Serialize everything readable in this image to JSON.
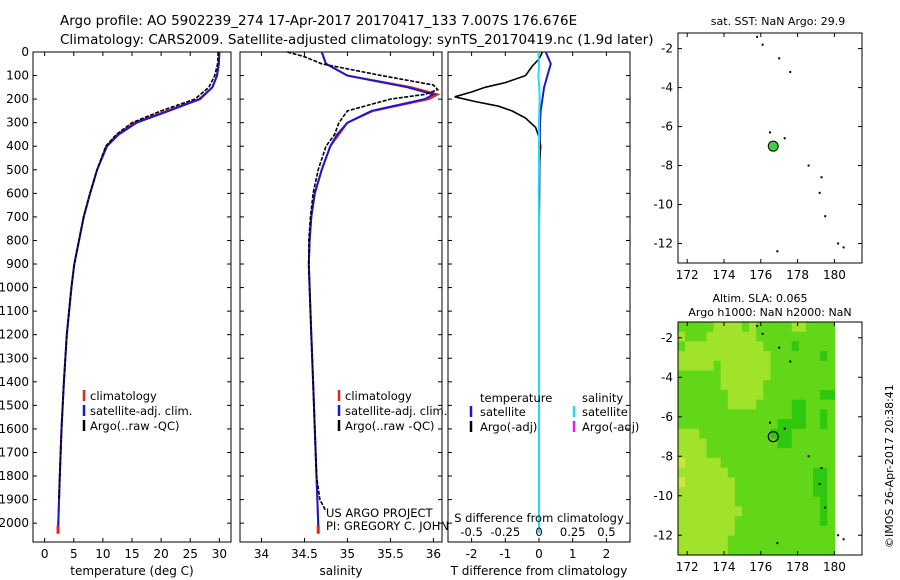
{
  "header": {
    "line1": "Argo profile: AO 5902239_274 17-Apr-2017 20170417_133 7.007S 176.676E",
    "line2": "Climatology: CARS2009. Satellite-adjusted climatology: synTS_20170419.nc (1.9d later)"
  },
  "side_stamp": "©IMOS 26-Apr-2017 20:38:41",
  "colors": {
    "climatology": "#e8201c",
    "satellite": "#1a1acc",
    "argo": "#000000",
    "satellite_salinity": "#22ddee",
    "argo_adj_salinity": "#dd22dd",
    "float_marker": "#44cc44"
  },
  "chart_data": [
    {
      "id": "temperature",
      "type": "line",
      "title": "",
      "xlabel": "temperature (deg C)",
      "ylabel": "",
      "xlim": [
        -2,
        32
      ],
      "ylim": [
        2080,
        0
      ],
      "xticks": [
        0,
        5,
        10,
        15,
        20,
        25,
        30
      ],
      "yticks": [
        0,
        100,
        200,
        300,
        400,
        500,
        600,
        700,
        800,
        900,
        1000,
        1100,
        1200,
        1300,
        1400,
        1500,
        1600,
        1700,
        1800,
        1900,
        2000
      ],
      "legend": [
        "climatology",
        "satellite-adj. clim.",
        "Argo(..raw -QC)"
      ],
      "series": [
        {
          "name": "climatology",
          "color_key": "climatology",
          "depth": [
            0,
            50,
            100,
            150,
            200,
            250,
            300,
            350,
            400,
            500,
            600,
            700,
            800,
            900,
            1000,
            1200,
            1400,
            1600,
            1800,
            2000,
            2040
          ],
          "values": [
            30,
            29.9,
            29.6,
            28.8,
            26.5,
            21,
            15.5,
            12.5,
            10.6,
            9,
            7.8,
            6.7,
            5.9,
            5.1,
            4.6,
            3.8,
            3.3,
            2.9,
            2.6,
            2.35,
            2.3
          ]
        },
        {
          "name": "satellite-adj. clim.",
          "color_key": "satellite",
          "depth": [
            0,
            50,
            100,
            150,
            200,
            250,
            300,
            350,
            400,
            500,
            600,
            700,
            800,
            900,
            1000,
            1200,
            1400,
            1600,
            1800,
            2000,
            2040
          ],
          "values": [
            30,
            29.9,
            29.6,
            28.8,
            26.7,
            21.3,
            15.8,
            12.7,
            10.7,
            9,
            7.8,
            6.7,
            5.9,
            5.1,
            4.6,
            3.8,
            3.3,
            2.9,
            2.6,
            2.35,
            2.3
          ]
        },
        {
          "name": "Argo(..raw -QC)",
          "color_key": "argo",
          "depth": [
            0,
            50,
            100,
            150,
            200,
            250,
            300,
            350,
            400,
            500,
            600,
            700,
            800,
            900,
            1000,
            1200,
            1400,
            1600,
            1800,
            1900
          ],
          "values": [
            29.8,
            29.7,
            29.2,
            28.2,
            25.8,
            20,
            15,
            12.3,
            10.5,
            9,
            7.8,
            6.7,
            5.9,
            5.1,
            4.6,
            3.8,
            3.3,
            2.9,
            2.6,
            2.45
          ]
        }
      ]
    },
    {
      "id": "salinity",
      "type": "line",
      "xlabel": "salinity",
      "xlim": [
        33.75,
        36.1
      ],
      "ylim": [
        2080,
        0
      ],
      "xticks": [
        34,
        34.5,
        35,
        35.5,
        36
      ],
      "legend": [
        "climatology",
        "satellite-adj. clim.",
        "Argo(..raw -QC)"
      ],
      "annotations": [
        "US ARGO PROJECT",
        "PI: GREGORY C. JOHNSON"
      ],
      "series": [
        {
          "name": "climatology",
          "color_key": "climatology",
          "depth": [
            0,
            50,
            100,
            150,
            180,
            200,
            250,
            300,
            350,
            400,
            500,
            600,
            700,
            800,
            900,
            1000,
            1200,
            1400,
            1600,
            1800,
            2000,
            2040
          ],
          "values": [
            34.7,
            34.75,
            35.0,
            35.75,
            36.05,
            35.95,
            35.3,
            35.0,
            34.9,
            34.8,
            34.7,
            34.62,
            34.58,
            34.56,
            34.55,
            34.56,
            34.58,
            34.6,
            34.62,
            34.64,
            34.66,
            34.66
          ]
        },
        {
          "name": "satellite-adj. clim.",
          "color_key": "satellite",
          "depth": [
            0,
            50,
            100,
            150,
            180,
            200,
            250,
            300,
            350,
            400,
            500,
            600,
            700,
            800,
            900,
            1000,
            1200,
            1400,
            1600,
            1800,
            2000,
            2040
          ],
          "values": [
            34.7,
            34.75,
            35.0,
            35.7,
            36.0,
            35.9,
            35.28,
            35.0,
            34.88,
            34.8,
            34.7,
            34.62,
            34.58,
            34.56,
            34.55,
            34.56,
            34.58,
            34.6,
            34.62,
            34.64,
            34.66,
            34.66
          ]
        },
        {
          "name": "Argo(..raw -QC)",
          "color_key": "argo",
          "depth": [
            0,
            20,
            50,
            100,
            140,
            160,
            180,
            200,
            250,
            300,
            350,
            400,
            500,
            600,
            700,
            800,
            900,
            1000,
            1200,
            1400,
            1600,
            1800,
            1900,
            1950
          ],
          "values": [
            34.3,
            34.5,
            34.7,
            35.4,
            36.0,
            36.05,
            35.9,
            35.5,
            35.0,
            34.9,
            34.85,
            34.75,
            34.66,
            34.6,
            34.57,
            34.55,
            34.55,
            34.56,
            34.58,
            34.6,
            34.62,
            34.64,
            34.68,
            34.75
          ]
        }
      ]
    },
    {
      "id": "difference",
      "type": "line",
      "xlabel": "T difference from climatology",
      "xlabel_top": "S difference from climatology",
      "xlim": [
        -2.7,
        2.7
      ],
      "ylim": [
        2080,
        0
      ],
      "xticks": [
        -2,
        -1,
        0,
        1,
        2
      ],
      "xticks_top": [
        -0.5,
        -0.25,
        0,
        0.25,
        0.5
      ],
      "xtick_labels_top": [
        "-0.5",
        "-0.25",
        "0",
        "0.25",
        "0.5"
      ],
      "legend": [
        "temperature",
        "satellite",
        "Argo(-adj)",
        "salinity",
        "satellite",
        "Argo(-adj)"
      ],
      "series": [
        {
          "name": "temperature satellite",
          "color_key": "satellite",
          "depth": [
            0,
            50,
            100,
            150,
            200,
            250,
            300,
            400,
            600,
            800,
            1000,
            1200,
            1500,
            1800,
            2040
          ],
          "values": [
            0.2,
            0.35,
            0.25,
            0.15,
            0.1,
            0.05,
            0.03,
            0.02,
            0.01,
            0.0,
            0.0,
            0.0,
            0.0,
            0.0,
            0.0
          ]
        },
        {
          "name": "temperature Argo(-adj)",
          "color_key": "argo",
          "depth": [
            0,
            30,
            60,
            100,
            130,
            150,
            170,
            190,
            210,
            230,
            250,
            280,
            320,
            360,
            400,
            500,
            600,
            800,
            1000,
            1200,
            1500,
            1800,
            1900
          ],
          "values": [
            0.1,
            0.0,
            -0.2,
            -0.4,
            -1.0,
            -1.6,
            -2.0,
            -2.5,
            -1.9,
            -1.2,
            -0.8,
            -0.4,
            -0.1,
            0.0,
            0.05,
            0.0,
            0.0,
            0.0,
            0.0,
            0.0,
            0.0,
            0.0,
            0.0
          ]
        },
        {
          "name": "salinity satellite",
          "color_key": "satellite_salinity",
          "depth": [
            0,
            30,
            60,
            100,
            150,
            200,
            250,
            300,
            400,
            500,
            600,
            700,
            800,
            1000,
            1200,
            1500,
            1800,
            2040
          ],
          "values": [
            -0.02,
            -0.01,
            0.0,
            -0.02,
            0.01,
            0.02,
            0.01,
            0.0,
            0.0,
            0.0,
            -0.01,
            0.0,
            0.0,
            0.0,
            0.0,
            0.0,
            0.0,
            0.0
          ]
        }
      ]
    },
    {
      "id": "sst-map",
      "type": "scatter",
      "title": "sat. SST: NaN Argo: 29.9",
      "xlim": [
        171.5,
        181.5
      ],
      "ylim": [
        -13,
        -1.2
      ],
      "xticks": [
        172,
        174,
        176,
        178,
        180
      ],
      "yticks": [
        -2,
        -4,
        -6,
        -8,
        -10,
        -12
      ],
      "float_position": {
        "lon": 176.676,
        "lat": -7.007
      },
      "islands": [
        {
          "lon": 175.8,
          "lat": -1.4
        },
        {
          "lon": 176.1,
          "lat": -1.8
        },
        {
          "lon": 177.0,
          "lat": -2.5
        },
        {
          "lon": 177.6,
          "lat": -3.2
        },
        {
          "lon": 176.5,
          "lat": -6.3
        },
        {
          "lon": 177.3,
          "lat": -6.6
        },
        {
          "lon": 178.6,
          "lat": -8.0
        },
        {
          "lon": 179.3,
          "lat": -8.6
        },
        {
          "lon": 179.2,
          "lat": -9.4
        },
        {
          "lon": 179.5,
          "lat": -10.6
        },
        {
          "lon": 180.2,
          "lat": -12.0
        },
        {
          "lon": 180.5,
          "lat": -12.2
        },
        {
          "lon": 176.9,
          "lat": -12.4
        }
      ]
    },
    {
      "id": "sla-map",
      "type": "heatmap",
      "title": "Altim. SLA: 0.065",
      "subtitle": "Argo h1000: NaN h2000: NaN",
      "xlim": [
        171.5,
        181.5
      ],
      "ylim": [
        -13,
        -1.2
      ],
      "xticks": [
        172,
        174,
        176,
        178,
        180
      ],
      "yticks": [
        -2,
        -4,
        -6,
        -8,
        -10,
        -12
      ],
      "data_extent_lon": [
        171.5,
        180.0
      ],
      "float_position": {
        "lon": 176.676,
        "lat": -7.007
      },
      "grid_rows": [
        "bbbbbccccbcbbbbbccbbbb",
        "cbbbcccccccbbbbbbbbbbb",
        "bcccccccccccbbbbabbbbb",
        "cccccccccccccbbbbbbbab",
        "cccccbcccccccbbbbbbbbb",
        "bbbbbbcccccccbbbbbbbbb",
        "bbbbbbccccccbbbbbbbbbb",
        "bbbbbbbcccccbbbbbbbbaa",
        "bbbbbbbccccbbbbbaabbbb",
        "bbbbbbbbbbbbbbbbaabbab",
        "bbbbbbbbbbbbbbaaaabbab",
        "cccbbbbbbbbbbaaabbbbbb",
        "ccccbbbbbbbbbbaabbbbbb",
        "ccccbbbbbbbbbbbbbbbbbb",
        "dcccccbbbbbbbbbbbbbbbb",
        "cccccccbbbbbbbbbbbbaab",
        "dcccccccbbbbbbbbbbbaab",
        "ccccccccbbbbbbbbbbbaab",
        "ccccccccbbbbbbbbbbbbab",
        "cccccccccbbbbbbbbbbbab",
        "ccccccccbbbbbbbbbbbbab",
        "ccccccccbbbbbbbbbbbbbb",
        "cccccccbbbbbbbbbbbbbbb",
        "cccccccbbbbbbbbbbbbbbb"
      ],
      "palette": {
        "a": "#2ec80f",
        "b": "#62d718",
        "c": "#a0e32a",
        "d": "#cce83a"
      }
    }
  ]
}
